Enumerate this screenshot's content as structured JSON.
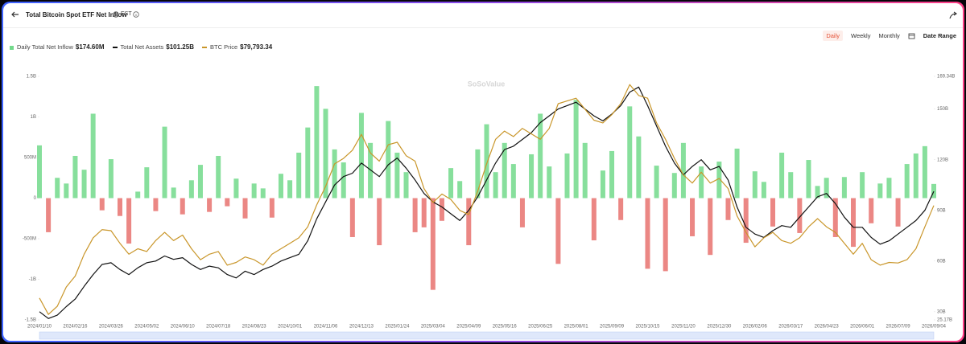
{
  "header": {
    "title": "Total Bitcoin Spot ETF Net Inflow",
    "timezone": "EST",
    "buttons": [
      "Daily",
      "Weekly",
      "Monthly"
    ],
    "date_range": "Date Range"
  },
  "chart_data": {
    "type": "bar-line",
    "watermark": "SoSoValue",
    "categories": [
      "2024/01/10",
      null,
      null,
      null,
      "2024/02/16",
      null,
      null,
      null,
      "2024/03/26",
      null,
      null,
      null,
      "2024/05/02",
      null,
      null,
      null,
      "2024/06/10",
      null,
      null,
      null,
      "2024/07/18",
      null,
      null,
      null,
      "2024/08/23",
      null,
      null,
      null,
      "2024/10/01",
      null,
      null,
      null,
      "2024/11/06",
      null,
      null,
      null,
      "2024/12/13",
      null,
      null,
      null,
      "2025/01/24",
      null,
      null,
      null,
      "2025/03/04",
      null,
      null,
      null,
      "2025/04/09",
      null,
      null,
      null,
      "2025/05/16",
      null,
      null,
      null,
      "2025/06/25",
      null,
      null,
      null,
      "2025/08/01",
      null,
      null,
      null,
      "2025/09/09",
      null,
      null,
      null,
      "2025/10/15",
      null,
      null,
      null,
      "2025/11/20",
      null,
      null,
      null,
      "2025/12/30",
      null,
      null,
      null,
      "2026/02/06",
      null,
      null,
      null,
      "2026/03/17",
      null,
      null,
      null,
      "2026/04/23",
      null,
      null,
      null,
      "2026/06/01",
      null,
      null,
      null,
      "2026/07/09",
      null,
      null,
      null,
      "2026/09/04"
    ],
    "series": [
      {
        "name": "Daily Total Net Inflow",
        "latest_label": "$174.60M",
        "type": "bar",
        "axis": "y",
        "color": "#72d98b",
        "negative_color": "#e8726f",
        "values": [
          650,
          -420,
          250,
          180,
          520,
          350,
          1040,
          -150,
          480,
          -220,
          -560,
          80,
          380,
          -160,
          880,
          130,
          -200,
          220,
          410,
          -170,
          520,
          -100,
          240,
          -250,
          180,
          120,
          -240,
          300,
          220,
          560,
          870,
          1380,
          1100,
          600,
          440,
          -480,
          1050,
          680,
          -580,
          950,
          560,
          320,
          -420,
          -360,
          -1130,
          -280,
          370,
          210,
          -580,
          600,
          910,
          320,
          680,
          420,
          -360,
          540,
          1040,
          390,
          -810,
          550,
          1210,
          680,
          -520,
          340,
          580,
          -270,
          1130,
          760,
          -870,
          400,
          -900,
          310,
          680,
          -470,
          390,
          -700,
          450,
          -270,
          610,
          -550,
          330,
          200,
          -350,
          560,
          320,
          -430,
          470,
          150,
          250,
          -480,
          260,
          -600,
          320,
          -310,
          180,
          250,
          -350,
          420,
          550,
          640,
          174.6
        ]
      },
      {
        "name": "Total Net Assets",
        "latest_label": "$101.25B",
        "type": "line",
        "axis": "y2",
        "color": "#111111",
        "values": [
          30,
          26,
          28,
          33,
          37.5,
          45,
          52,
          58,
          59,
          55,
          52,
          56,
          59,
          60,
          63,
          61,
          62,
          58,
          55,
          57,
          56,
          52,
          50,
          54,
          52,
          55,
          57,
          60,
          62,
          64,
          72,
          85,
          95,
          105,
          110,
          112,
          118,
          114,
          110,
          117,
          121,
          115,
          108,
          100,
          95,
          92,
          88,
          84,
          90,
          98,
          108,
          118,
          126,
          128,
          132,
          136,
          142,
          146,
          150,
          152,
          154,
          150,
          146,
          143,
          147,
          152,
          160,
          163,
          152,
          140,
          128,
          118,
          111,
          116,
          120,
          114,
          116,
          108,
          92,
          80,
          76,
          74,
          78,
          81,
          80,
          86,
          92,
          98,
          100,
          94,
          86,
          80,
          80,
          74,
          70,
          72,
          76,
          80,
          84,
          90,
          101.25
        ]
      },
      {
        "name": "BTC Price",
        "latest_label": "$79,793.34",
        "type": "line",
        "axis": "y3",
        "color": "#c9962a",
        "values": [
          46000,
          40000,
          43000,
          50000,
          54000,
          62000,
          68000,
          71000,
          70600,
          66000,
          62000,
          64000,
          63000,
          67000,
          70000,
          67000,
          69000,
          64000,
          60000,
          62000,
          63000,
          58000,
          59000,
          61000,
          60000,
          58000,
          62000,
          64000,
          66000,
          68000,
          72000,
          80000,
          86800,
          95000,
          97000,
          100000,
          105800,
          99000,
          96000,
          102000,
          102900,
          98000,
          96000,
          86000,
          80900,
          84000,
          82000,
          78000,
          76500,
          85000,
          95000,
          104000,
          107000,
          105000,
          108000,
          106000,
          104000,
          108000,
          117000,
          118000,
          119000,
          115000,
          111000,
          110000,
          113000,
          117000,
          124000,
          120000,
          119000,
          110000,
          104000,
          97000,
          91000,
          88000,
          92000,
          88000,
          89700,
          86000,
          76000,
          70000,
          64700,
          68000,
          70000,
          67000,
          66000,
          68000,
          72000,
          75000,
          72000,
          70000,
          66000,
          62000,
          66000,
          60000,
          58000,
          59000,
          58800,
          60000,
          64000,
          72000,
          79793.34
        ]
      }
    ],
    "ylim": [
      -1500,
      1500
    ],
    "yticks": [
      {
        "value": 1500,
        "label": "1.5B"
      },
      {
        "value": 1000,
        "label": "1B"
      },
      {
        "value": 500,
        "label": "500M"
      },
      0,
      {
        "value": -500,
        "label": "-500M"
      },
      {
        "value": -1000,
        "label": "-1B"
      },
      {
        "value": -1500,
        "label": "-1.5B"
      }
    ],
    "y2lim": [
      25.17,
      169.34
    ],
    "y2ticks": [
      {
        "value": 169.34,
        "label": "169.34B"
      },
      {
        "value": 150,
        "label": "150B"
      },
      {
        "value": 120,
        "label": "120B"
      },
      {
        "value": 90,
        "label": "90B"
      },
      {
        "value": 60,
        "label": "60B"
      },
      {
        "value": 30,
        "label": "30B"
      },
      {
        "value": 25.17,
        "label": "25.17B"
      }
    ],
    "y3lim": [
      38000,
      127000
    ],
    "grid": false
  }
}
